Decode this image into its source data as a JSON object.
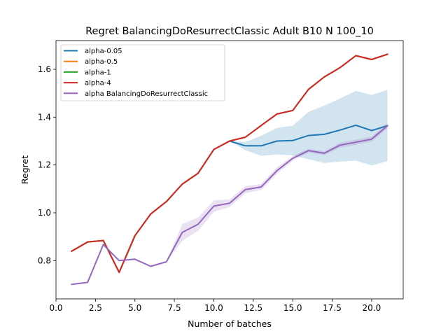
{
  "chart_data": {
    "type": "line",
    "title": "Regret BalancingDoResurrectClassic Adult B10 N 100_10",
    "xlabel": "Number of batches",
    "ylabel": "Regret",
    "xlim": [
      0.0,
      22.0
    ],
    "ylim": [
      0.64,
      1.72
    ],
    "xticks": [
      0.0,
      2.5,
      5.0,
      7.5,
      10.0,
      12.5,
      15.0,
      17.5,
      20.0
    ],
    "xtick_labels": [
      "0.0",
      "2.5",
      "5.0",
      "7.5",
      "10.0",
      "12.5",
      "15.0",
      "17.5",
      "20.0"
    ],
    "yticks": [
      0.8,
      1.0,
      1.2,
      1.4,
      1.6
    ],
    "ytick_labels": [
      "0.8",
      "1.0",
      "1.2",
      "1.4",
      "1.6"
    ],
    "grid": false,
    "legend_position": "top-left",
    "x": [
      1,
      2,
      3,
      4,
      5,
      6,
      7,
      8,
      9,
      10,
      11,
      12,
      13,
      14,
      15,
      16,
      17,
      18,
      19,
      20,
      21
    ],
    "series": [
      {
        "name": "alpha-0.05",
        "color": "#1f77b4",
        "values": [
          0.84,
          0.878,
          0.884,
          0.751,
          0.904,
          0.995,
          1.047,
          1.12,
          1.165,
          1.265,
          1.3,
          1.28,
          1.28,
          1.3,
          1.302,
          1.323,
          1.328,
          1.346,
          1.366,
          1.344,
          1.364
        ],
        "band_lower": [
          0.84,
          0.878,
          0.884,
          0.751,
          0.904,
          0.995,
          1.047,
          1.12,
          1.165,
          1.265,
          1.3,
          1.262,
          1.238,
          1.244,
          1.24,
          1.224,
          1.208,
          1.214,
          1.218,
          1.198,
          1.216
        ],
        "band_upper": [
          0.84,
          0.878,
          0.884,
          0.751,
          0.904,
          0.995,
          1.047,
          1.12,
          1.165,
          1.265,
          1.3,
          1.296,
          1.322,
          1.355,
          1.364,
          1.422,
          1.448,
          1.478,
          1.51,
          1.493,
          1.514
        ]
      },
      {
        "name": "alpha-0.5",
        "color": "#ff7f0e",
        "values": [
          0.84,
          0.878,
          0.884,
          0.751,
          0.904,
          0.995,
          1.047,
          1.12,
          1.165,
          1.265,
          1.3,
          1.316,
          1.365,
          1.413,
          1.428,
          1.516,
          1.568,
          1.607,
          1.657,
          1.641,
          1.663
        ]
      },
      {
        "name": "alpha-1",
        "color": "#2ca02c",
        "values": [
          0.84,
          0.878,
          0.884,
          0.751,
          0.904,
          0.995,
          1.047,
          1.12,
          1.165,
          1.265,
          1.3,
          1.316,
          1.365,
          1.413,
          1.428,
          1.516,
          1.568,
          1.607,
          1.657,
          1.641,
          1.663
        ]
      },
      {
        "name": "alpha-4",
        "color": "#d62728",
        "values": [
          0.84,
          0.878,
          0.884,
          0.751,
          0.904,
          0.995,
          1.047,
          1.12,
          1.165,
          1.265,
          1.3,
          1.316,
          1.365,
          1.413,
          1.428,
          1.516,
          1.568,
          1.607,
          1.657,
          1.641,
          1.663
        ]
      },
      {
        "name": "alpha BalancingDoResurrectClassic",
        "color": "#9467bd",
        "values": [
          0.701,
          0.709,
          0.867,
          0.8,
          0.806,
          0.776,
          0.795,
          0.918,
          0.952,
          1.028,
          1.04,
          1.097,
          1.108,
          1.176,
          1.228,
          1.26,
          1.249,
          1.283,
          1.295,
          1.308,
          1.364
        ],
        "band_lower": [
          0.701,
          0.709,
          0.867,
          0.8,
          0.806,
          0.776,
          0.795,
          0.883,
          0.924,
          1.004,
          1.024,
          1.082,
          1.095,
          1.162,
          1.218,
          1.252,
          1.241,
          1.273,
          1.284,
          1.297,
          1.352
        ],
        "band_upper": [
          0.701,
          0.709,
          0.867,
          0.8,
          0.806,
          0.776,
          0.795,
          0.953,
          0.98,
          1.052,
          1.056,
          1.112,
          1.121,
          1.19,
          1.238,
          1.268,
          1.257,
          1.293,
          1.306,
          1.319,
          1.376
        ]
      }
    ]
  }
}
